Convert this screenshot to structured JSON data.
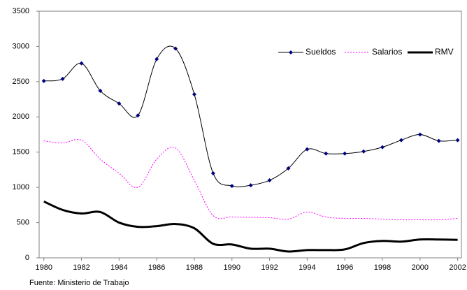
{
  "chart_data": {
    "type": "line",
    "x": [
      1980,
      1981,
      1982,
      1983,
      1984,
      1985,
      1986,
      1987,
      1988,
      1989,
      1990,
      1991,
      1992,
      1993,
      1994,
      1995,
      1996,
      1997,
      1998,
      1999,
      2000,
      2001,
      2002
    ],
    "series": [
      {
        "name": "Sueldos",
        "color": "#000080",
        "values": [
          2510,
          2540,
          2760,
          2370,
          2190,
          2020,
          2820,
          2970,
          2320,
          1200,
          1020,
          1030,
          1100,
          1270,
          1540,
          1480,
          1480,
          1510,
          1570,
          1670,
          1750,
          1660,
          1670
        ]
      },
      {
        "name": "Salarios",
        "color": "#ff00ff",
        "values": [
          1660,
          1630,
          1670,
          1400,
          1200,
          1000,
          1400,
          1560,
          1100,
          600,
          580,
          575,
          570,
          550,
          650,
          580,
          560,
          560,
          550,
          540,
          540,
          540,
          560
        ]
      },
      {
        "name": "RMV",
        "color": "#000000",
        "values": [
          800,
          680,
          630,
          650,
          500,
          440,
          450,
          480,
          420,
          200,
          190,
          130,
          130,
          90,
          110,
          110,
          120,
          210,
          240,
          230,
          260,
          260,
          255
        ]
      }
    ],
    "xlim": [
      1979.75,
      2002.2
    ],
    "xticks": [
      1980,
      1982,
      1984,
      1986,
      1988,
      1990,
      1992,
      1994,
      1996,
      1998,
      2000,
      2002
    ],
    "ylim": [
      0,
      3500
    ],
    "yticks": [
      0,
      500,
      1000,
      1500,
      2000,
      2500,
      3000,
      3500
    ],
    "legend": "upper right",
    "source": "Fuente: Ministerio de Trabajo"
  }
}
